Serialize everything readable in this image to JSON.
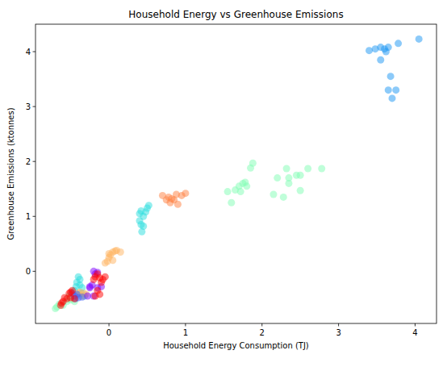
{
  "chart_data": {
    "type": "scatter",
    "title": "Household Energy vs Greenhouse Emissions",
    "x_label": "Household Energy Consumption (TJ)",
    "y_label": "Greenhouse Emissions (ktonnes)",
    "xlim": [
      -0.96,
      4.28
    ],
    "ylim": [
      -0.95,
      4.5
    ],
    "xticks": [
      0,
      1,
      2,
      3,
      4
    ],
    "yticks": [
      0,
      1,
      2,
      3,
      4
    ],
    "grid": false,
    "marker": "circle",
    "series": [
      {
        "color": "#1996f3",
        "x": [
          3.4,
          3.48,
          3.55,
          3.6,
          3.62,
          3.65,
          3.55,
          3.68,
          3.65,
          3.75,
          3.7,
          3.78,
          4.05
        ],
        "values": [
          4.02,
          4.05,
          4.08,
          4.05,
          4.0,
          4.08,
          3.85,
          3.55,
          3.3,
          3.3,
          3.15,
          4.15,
          4.23
        ]
      },
      {
        "color": "#80feb3",
        "x": [
          1.55,
          1.6,
          1.65,
          1.7,
          1.72,
          1.75,
          1.78,
          1.8,
          1.85,
          1.88,
          2.15,
          2.2,
          2.28,
          2.32,
          2.35,
          2.35,
          2.45,
          2.5,
          2.5,
          2.6,
          2.78,
          -0.7,
          -0.65,
          -0.55,
          -0.5,
          -0.6,
          -0.45,
          -0.68,
          -0.52
        ],
        "values": [
          1.45,
          1.25,
          1.48,
          1.55,
          1.45,
          1.6,
          1.62,
          1.55,
          1.88,
          1.97,
          1.4,
          1.7,
          1.35,
          1.87,
          1.6,
          1.7,
          1.75,
          1.75,
          1.47,
          1.87,
          1.87,
          -0.68,
          -0.6,
          -0.55,
          -0.52,
          -0.62,
          -0.55,
          -0.65,
          -0.45
        ]
      },
      {
        "color": "#ff7f40",
        "x": [
          0.7,
          0.75,
          0.78,
          0.8,
          0.85,
          0.88,
          0.9,
          0.95,
          1.0,
          0.82
        ],
        "values": [
          1.38,
          1.3,
          1.35,
          1.25,
          1.3,
          1.4,
          1.22,
          1.38,
          1.42,
          1.32
        ]
      },
      {
        "color": "#2adddd",
        "x": [
          0.4,
          0.42,
          0.45,
          0.5,
          0.52,
          0.4,
          0.42,
          0.45,
          0.43,
          0.48,
          -0.4,
          -0.42,
          -0.38,
          -0.35,
          -0.45,
          -0.4,
          -0.32,
          -0.38,
          -0.43,
          -0.36
        ],
        "values": [
          1.05,
          1.1,
          1.0,
          1.15,
          1.2,
          0.92,
          0.85,
          0.82,
          0.72,
          1.08,
          -0.1,
          -0.2,
          -0.25,
          -0.3,
          -0.35,
          -0.42,
          -0.45,
          -0.15,
          -0.28,
          -0.4
        ]
      },
      {
        "color": "#ffb360",
        "x": [
          -0.05,
          0.0,
          0.02,
          0.05,
          0.0,
          0.1,
          0.15,
          0.05,
          -0.02,
          0.08,
          -0.4,
          -0.35,
          -0.3,
          -0.38,
          -0.33
        ],
        "values": [
          0.15,
          0.25,
          0.3,
          0.35,
          0.32,
          0.38,
          0.35,
          0.2,
          0.18,
          0.37,
          -0.4,
          -0.45,
          -0.42,
          -0.38,
          -0.4
        ]
      },
      {
        "color": "#8000ff",
        "x": [
          -0.2,
          -0.18,
          -0.25,
          -0.15,
          -0.2,
          -0.28,
          -0.1,
          -0.22,
          -0.15,
          -0.25
        ],
        "values": [
          0.0,
          -0.05,
          -0.28,
          -0.3,
          -0.45,
          -0.45,
          -0.28,
          -0.25,
          -0.02,
          -0.3
        ]
      },
      {
        "color": "#4062fa",
        "x": [
          -0.45,
          -0.4,
          -0.42,
          -0.35,
          -0.48,
          -0.44
        ],
        "values": [
          -0.45,
          -0.48,
          -0.42,
          -0.47,
          -0.4,
          -0.5
        ]
      },
      {
        "color": "#ff0000",
        "x": [
          -0.63,
          -0.6,
          -0.55,
          -0.5,
          -0.52,
          -0.48,
          -0.45,
          -0.58,
          -0.62,
          -0.5,
          -0.18,
          -0.15,
          -0.12,
          -0.2,
          -0.1,
          -0.15,
          -0.12,
          -0.18,
          -0.05,
          -0.08
        ],
        "values": [
          -0.62,
          -0.55,
          -0.5,
          -0.48,
          -0.4,
          -0.35,
          -0.5,
          -0.48,
          -0.58,
          -0.38,
          -0.1,
          -0.05,
          -0.12,
          -0.15,
          -0.2,
          -0.35,
          -0.42,
          -0.45,
          -0.1,
          -0.15
        ]
      }
    ]
  }
}
